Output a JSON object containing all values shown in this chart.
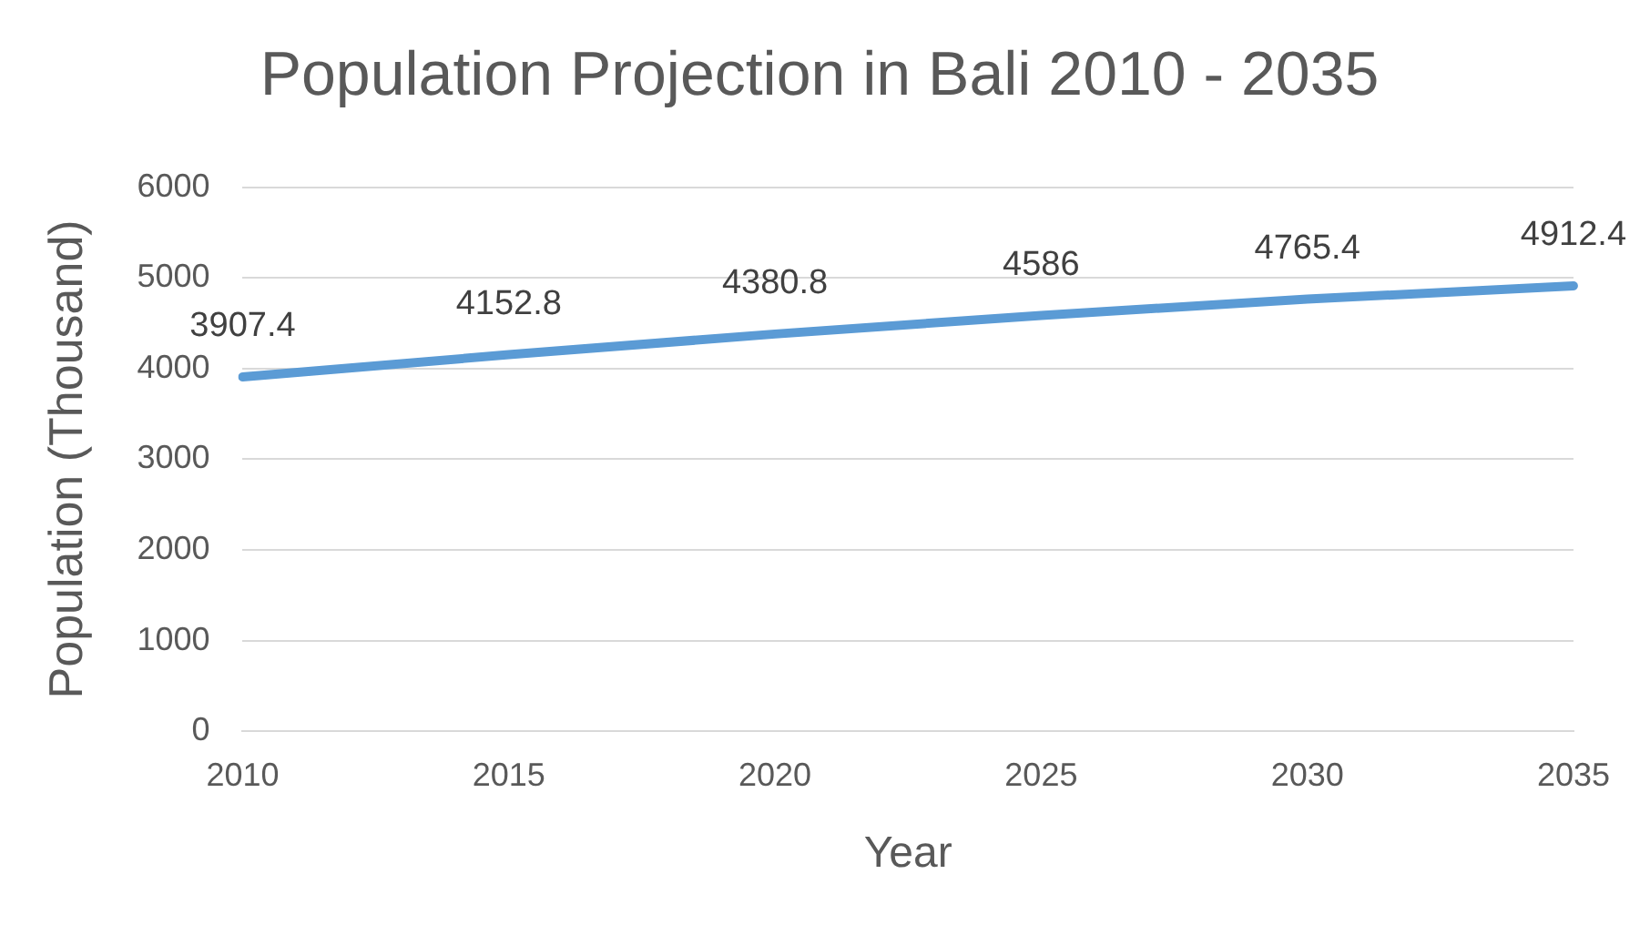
{
  "chart_data": {
    "type": "line",
    "title": "Population Projection in Bali 2010 - 2035",
    "xlabel": "Year",
    "ylabel": "Population (Thousand)",
    "categories": [
      "2010",
      "2015",
      "2020",
      "2025",
      "2030",
      "2035"
    ],
    "series": [
      {
        "color": "#5b9bd5",
        "values": [
          3907.4,
          4152.8,
          4380.8,
          4586,
          4765.4,
          4912.4
        ]
      }
    ],
    "ylim": [
      0,
      6000
    ],
    "yticks": [
      0,
      1000,
      2000,
      3000,
      4000,
      5000,
      6000
    ],
    "grid": "y",
    "legend": false,
    "marker": "none",
    "data_labels": true
  }
}
